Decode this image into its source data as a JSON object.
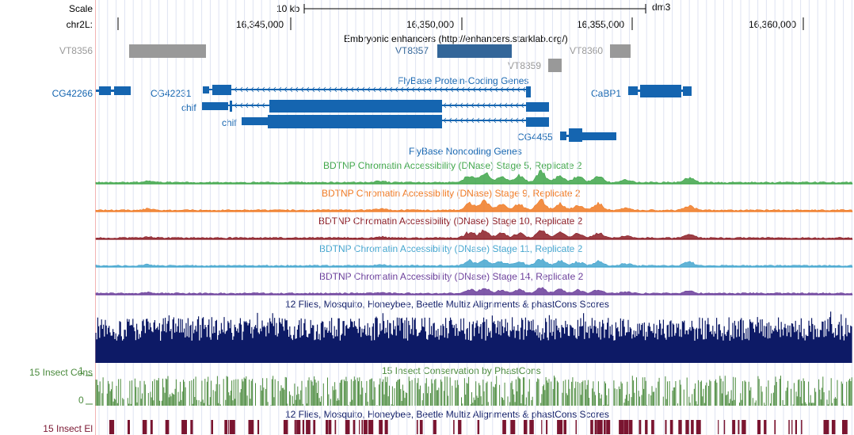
{
  "assembly": "dm3",
  "scale": {
    "label": "Scale",
    "bar_label": "10 kb"
  },
  "chrom": {
    "label": "chr2L:",
    "ticks": [
      "16,345,000",
      "16,350,000",
      "16,355,000",
      "16,360,000"
    ]
  },
  "tracks": {
    "enhancers": {
      "title": "Embryonic enhancers (http://enhancers.starklab.org/)",
      "items": [
        {
          "name": "VT8356",
          "color": "#999999"
        },
        {
          "name": "VT8357",
          "color": "#336699"
        },
        {
          "name": "VT8359",
          "color": "#999999"
        },
        {
          "name": "VT8360",
          "color": "#999999"
        }
      ]
    },
    "genes": {
      "title": "FlyBase Protein-Coding Genes",
      "color": "#1565b0",
      "items": [
        {
          "name": "CG42266"
        },
        {
          "name": "CG42231"
        },
        {
          "name": "chif"
        },
        {
          "name": "chif"
        },
        {
          "name": "CaBP1"
        },
        {
          "name": "CG4455"
        }
      ]
    },
    "noncoding": {
      "title": "FlyBase Noncoding Genes",
      "color": "#1565b0"
    },
    "dnase": [
      {
        "title": "BDTNP Chromatin Accessibility (DNase) Stage 5, Replicate 2",
        "color": "#3fa64a"
      },
      {
        "title": "BDTNP Chromatin Accessibility (DNase) Stage 9, Replicate 2",
        "color": "#f07a24"
      },
      {
        "title": "BDTNP Chromatin Accessibility (DNase) Stage 10, Replicate 2",
        "color": "#8b1c25"
      },
      {
        "title": "BDTNP Chromatin Accessibility (DNase) Stage 11, Replicate 2",
        "color": "#45a6cf"
      },
      {
        "title": "BDTNP Chromatin Accessibility (DNase) Stage 14, Replicate 2",
        "color": "#6a3d9a"
      }
    ],
    "multiz": {
      "title": "12 Flies, Mosquito, Honeybee, Beetle Multiz Alignments & phastCons Scores",
      "color": "#0d1a66"
    },
    "phastcons": {
      "title": "15 Insect Conservation by PhastCons",
      "side_label": "15 Insect Cons",
      "axis_top": "1",
      "axis_bottom": "0",
      "color": "#4a8a3c"
    },
    "elements": {
      "title": "12 Flies, Mosquito, Honeybee, Beetle Multiz Alignments & phastCons Scores",
      "side_label": "15 Insect El",
      "color": "#7a1530"
    }
  }
}
